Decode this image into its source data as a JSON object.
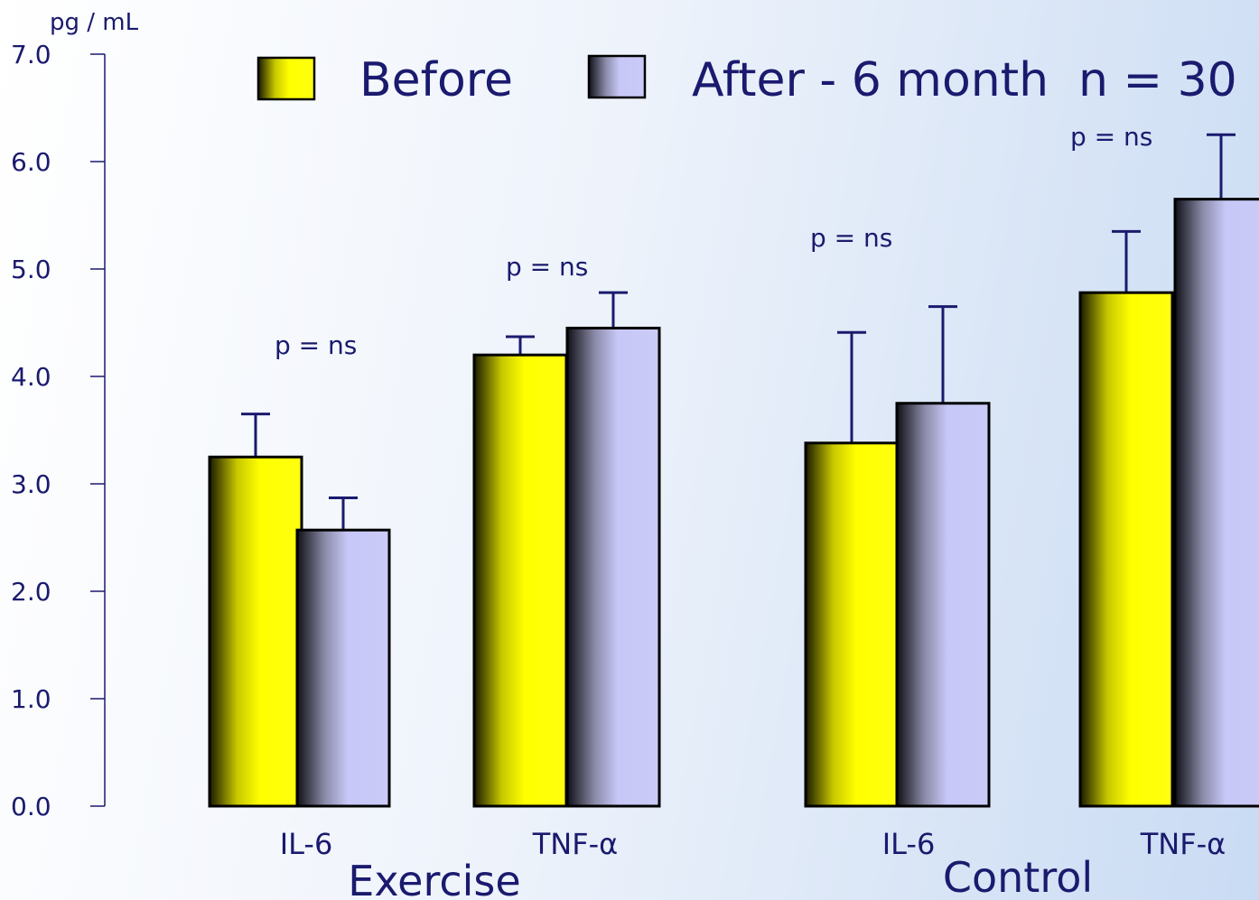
{
  "chart_data": {
    "type": "bar",
    "unit_label": "pg / mL",
    "ylim": [
      0,
      7
    ],
    "yticks": [
      "0.0",
      "1.0",
      "2.0",
      "3.0",
      "4.0",
      "5.0",
      "6.0",
      "7.0"
    ],
    "categories": [
      "IL-6",
      "TNF-α",
      "IL-6",
      "TNF-α"
    ],
    "groups": [
      {
        "label": "Exercise",
        "categories": [
          0,
          1
        ]
      },
      {
        "label": "Control",
        "categories": [
          2,
          3
        ]
      }
    ],
    "series": [
      {
        "name": "Before",
        "values": [
          3.25,
          4.2,
          3.38,
          4.78
        ],
        "errors": [
          0.4,
          0.17,
          1.03,
          0.57
        ],
        "color": "#ffff00"
      },
      {
        "name": "After - 6 month",
        "values": [
          2.57,
          4.45,
          3.75,
          5.65
        ],
        "errors": [
          0.3,
          0.33,
          0.9,
          0.6
        ],
        "color": "#c8c8f8"
      }
    ],
    "annotations": [
      "p = ns",
      "p = ns",
      "p = ns",
      "p = ns"
    ],
    "legend_note": "n = 30",
    "legend_position": "top"
  }
}
